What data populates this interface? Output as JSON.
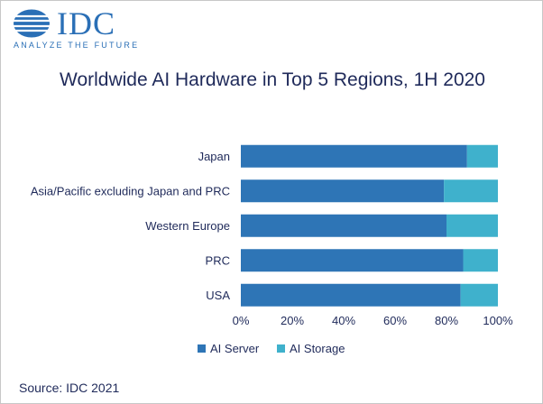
{
  "logo": {
    "wordmark": "IDC",
    "tagline": "ANALYZE THE FUTURE",
    "icon": "globe-icon",
    "color": "#2a6fb6"
  },
  "source": "Source: IDC 2021",
  "chart_data": {
    "type": "bar",
    "orientation": "horizontal",
    "stacked": true,
    "title": "Worldwide AI Hardware in Top 5 Regions, 1H 2020",
    "categories": [
      "Japan",
      "Asia/Pacific excluding Japan and PRC",
      "Western Europe",
      "PRC",
      "USA"
    ],
    "series": [
      {
        "name": "AI Server",
        "color": "#2e75b6",
        "values": [
          88,
          79,
          80,
          86.5,
          85.5
        ]
      },
      {
        "name": "AI Storage",
        "color": "#3fb1cc",
        "values": [
          12,
          21,
          20,
          13.5,
          14.5
        ]
      }
    ],
    "xlim": [
      0,
      100
    ],
    "xticks": [
      "0%",
      "20%",
      "40%",
      "60%",
      "80%",
      "100%"
    ],
    "grid": false,
    "legend": "bottom"
  }
}
